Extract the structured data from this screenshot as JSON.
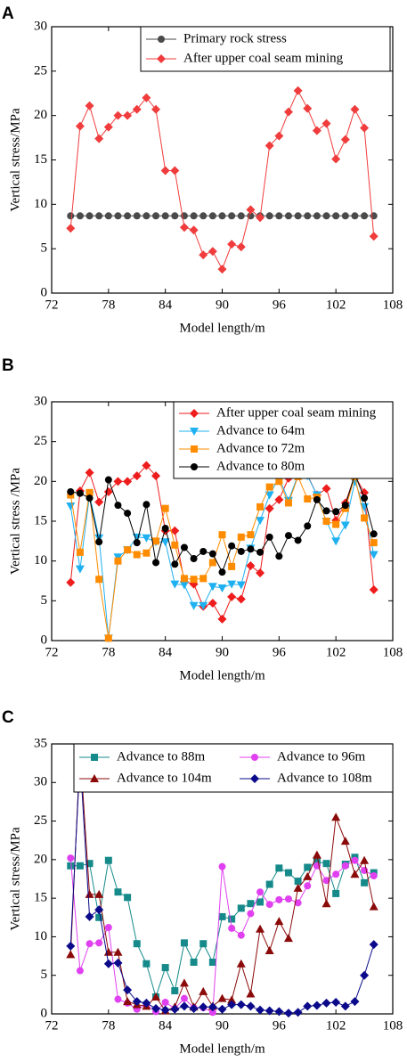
{
  "chart_data": [
    {
      "type": "line",
      "panel_label": "A",
      "xlabel": "Model length/m",
      "ylabel": "Vertical stress/MPa",
      "xlim": [
        72,
        108
      ],
      "ylim": [
        0,
        30
      ],
      "xticks": [
        72,
        78,
        84,
        90,
        96,
        102,
        108
      ],
      "yticks": [
        0,
        5,
        10,
        15,
        20,
        25,
        30
      ],
      "legend": "upper right",
      "legend_columns": 1,
      "x": [
        74,
        75,
        76,
        77,
        78,
        79,
        80,
        81,
        82,
        83,
        84,
        85,
        86,
        87,
        88,
        89,
        90,
        91,
        92,
        93,
        94,
        95,
        96,
        97,
        98,
        99,
        100,
        101,
        102,
        103,
        104,
        105,
        106
      ],
      "series": [
        {
          "name": "Primary rock stress",
          "color": "#4a4a4a",
          "marker": "circle",
          "values": [
            8.7,
            8.7,
            8.7,
            8.7,
            8.7,
            8.7,
            8.7,
            8.7,
            8.7,
            8.7,
            8.7,
            8.7,
            8.7,
            8.7,
            8.7,
            8.7,
            8.7,
            8.7,
            8.7,
            8.7,
            8.7,
            8.7,
            8.7,
            8.7,
            8.7,
            8.7,
            8.7,
            8.7,
            8.7,
            8.7,
            8.7,
            8.7,
            8.7
          ]
        },
        {
          "name": "After upper coal seam mining",
          "color": "#f03c3c",
          "marker": "diamond",
          "values": [
            7.3,
            18.8,
            21.1,
            17.4,
            18.7,
            20.0,
            20.0,
            20.7,
            22.0,
            20.7,
            13.8,
            13.8,
            7.4,
            7.1,
            4.3,
            4.7,
            2.7,
            5.5,
            5.2,
            9.4,
            8.5,
            16.6,
            17.7,
            20.4,
            22.8,
            20.8,
            18.3,
            19.1,
            15.1,
            17.3,
            20.7,
            18.6,
            6.4
          ]
        }
      ]
    },
    {
      "type": "line",
      "panel_label": "B",
      "xlabel": "Model length/m",
      "ylabel": "Vertical stress /MPa",
      "xlim": [
        72,
        108
      ],
      "ylim": [
        0,
        30
      ],
      "xticks": [
        72,
        78,
        84,
        90,
        96,
        102,
        108
      ],
      "yticks": [
        0,
        5,
        10,
        15,
        20,
        25,
        30
      ],
      "legend": "upper right",
      "legend_columns": 1,
      "x": [
        74,
        75,
        76,
        77,
        78,
        79,
        80,
        81,
        82,
        83,
        84,
        85,
        86,
        87,
        88,
        89,
        90,
        91,
        92,
        93,
        94,
        95,
        96,
        97,
        98,
        99,
        100,
        101,
        102,
        103,
        104,
        105,
        106
      ],
      "series": [
        {
          "name": "After upper coal seam mining",
          "color": "#ee1c1c",
          "marker": "diamond",
          "values": [
            7.3,
            18.8,
            21.1,
            17.4,
            18.7,
            20.0,
            20.0,
            20.7,
            22.0,
            20.7,
            13.8,
            13.8,
            7.4,
            7.1,
            4.3,
            4.7,
            2.7,
            5.5,
            5.2,
            9.4,
            8.5,
            16.6,
            17.7,
            20.4,
            22.8,
            20.8,
            18.3,
            19.1,
            15.1,
            17.3,
            20.7,
            18.6,
            6.4
          ]
        },
        {
          "name": "Advance to 64m",
          "color": "#1eb0f0",
          "marker": "triangle-down",
          "values": [
            16.9,
            9.0,
            18.3,
            12.9,
            0.3,
            10.5,
            11.4,
            13.0,
            12.9,
            12.4,
            12.4,
            7.1,
            7.0,
            4.4,
            4.4,
            6.8,
            6.6,
            7.1,
            7.0,
            11.6,
            15.1,
            18.3,
            20.5,
            17.6,
            20.8,
            20.7,
            18.3,
            15.0,
            12.5,
            14.5,
            20.0,
            16.8,
            10.8
          ]
        },
        {
          "name": "Advance to 72m",
          "color": "#ff8c00",
          "marker": "square",
          "values": [
            18.3,
            11.1,
            18.6,
            7.7,
            0.3,
            10.0,
            11.4,
            10.8,
            11.0,
            12.5,
            16.6,
            12.0,
            7.8,
            7.7,
            7.8,
            9.8,
            13.3,
            9.3,
            13.0,
            13.3,
            16.8,
            19.3,
            20.0,
            17.3,
            20.6,
            17.8,
            18.0,
            15.0,
            14.6,
            16.6,
            20.6,
            15.4,
            12.3
          ]
        },
        {
          "name": "Advance to 80m",
          "color": "#000000",
          "marker": "circle",
          "values": [
            18.7,
            18.5,
            17.9,
            12.4,
            20.2,
            17.0,
            16.0,
            12.3,
            17.1,
            9.8,
            14.1,
            9.6,
            11.7,
            10.3,
            11.2,
            10.9,
            8.6,
            11.9,
            11.2,
            11.5,
            11.1,
            13.0,
            10.6,
            13.2,
            12.6,
            14.4,
            17.7,
            16.3,
            16.2,
            17.0,
            20.9,
            17.9,
            13.4
          ]
        }
      ]
    },
    {
      "type": "line",
      "panel_label": "C",
      "xlabel": "Model length/m",
      "ylabel": "Vertical stress/MPa",
      "xlim": [
        72,
        108
      ],
      "ylim": [
        0,
        35
      ],
      "xticks": [
        72,
        78,
        84,
        90,
        96,
        102,
        108
      ],
      "yticks": [
        0,
        5,
        10,
        15,
        20,
        25,
        30,
        35
      ],
      "legend": "upper right",
      "legend_columns": 2,
      "x": [
        74,
        75,
        76,
        77,
        78,
        79,
        80,
        81,
        82,
        83,
        84,
        85,
        86,
        87,
        88,
        89,
        90,
        91,
        92,
        93,
        94,
        95,
        96,
        97,
        98,
        99,
        100,
        101,
        102,
        103,
        104,
        105,
        106
      ],
      "series": [
        {
          "name": "Advance to 88m",
          "color": "#168a8a",
          "marker": "square",
          "values": [
            19.2,
            19.2,
            19.5,
            12.5,
            19.9,
            15.8,
            15.1,
            9.1,
            6.5,
            2.2,
            6.0,
            3.0,
            9.2,
            6.7,
            9.1,
            6.7,
            12.6,
            12.3,
            13.7,
            14.3,
            14.5,
            16.8,
            18.9,
            18.3,
            17.2,
            19.0,
            19.7,
            19.5,
            15.6,
            19.4,
            20.3,
            17.0,
            18.3
          ]
        },
        {
          "name": "Advance to 96m",
          "color": "#e040f0",
          "marker": "circle",
          "values": [
            20.2,
            5.6,
            9.1,
            9.2,
            11.2,
            1.9,
            1.4,
            0.6,
            1.2,
            0.3,
            1.5,
            0.7,
            2.0,
            0.8,
            0.8,
            0.2,
            19.1,
            11.1,
            10.2,
            13.0,
            15.8,
            14.2,
            14.8,
            14.9,
            14.4,
            16.6,
            19.2,
            17.3,
            18.1,
            19.2,
            19.9,
            18.6,
            17.9
          ]
        },
        {
          "name": "Advance to 104m",
          "color": "#8b0a0a",
          "marker": "triangle-up",
          "values": [
            7.7,
            34.2,
            15.5,
            15.5,
            8.0,
            8.0,
            1.6,
            1.2,
            1.0,
            2.2,
            0.4,
            0.9,
            4.0,
            0.9,
            2.9,
            1.0,
            2.0,
            1.8,
            6.5,
            2.6,
            11.0,
            8.2,
            12.0,
            9.8,
            16.3,
            17.8,
            20.6,
            14.3,
            25.5,
            22.4,
            18.1,
            19.9,
            13.9
          ]
        },
        {
          "name": "Advance to 108m",
          "color": "#0a0a8b",
          "marker": "diamond",
          "values": [
            8.8,
            33.1,
            12.6,
            13.5,
            6.5,
            6.6,
            3.1,
            1.6,
            1.4,
            0.7,
            0.5,
            0.6,
            1.0,
            0.7,
            0.9,
            0.9,
            0.6,
            1.2,
            1.2,
            1.0,
            0.5,
            0.4,
            0.3,
            0.1,
            0.2,
            1.0,
            1.1,
            1.4,
            1.5,
            1.0,
            1.6,
            5.0,
            9.0
          ]
        }
      ]
    }
  ]
}
